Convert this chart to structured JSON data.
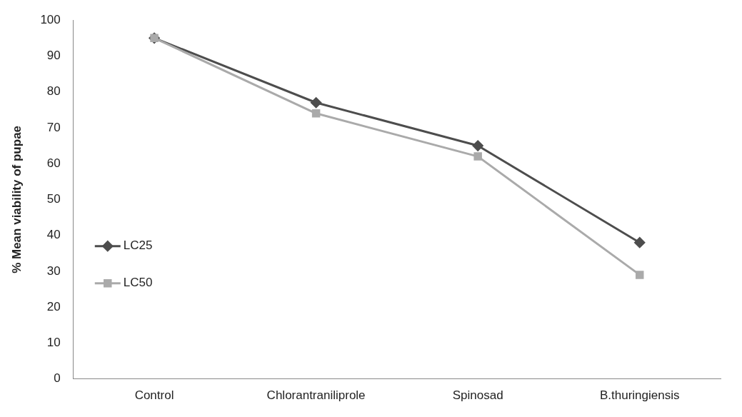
{
  "chart_data": {
    "type": "line",
    "ylabel": "% Mean viability of pupae",
    "categories": [
      "Control",
      "Chlorantraniliprole",
      "Spinosad",
      "B.thuringiensis"
    ],
    "series": [
      {
        "name": "LC25",
        "color": "#4d4d4d",
        "marker": "diamond",
        "values": [
          95,
          77,
          65,
          38
        ]
      },
      {
        "name": "LC50",
        "color": "#aaaaaa",
        "marker": "square",
        "values": [
          95,
          74,
          62,
          29
        ]
      }
    ],
    "ylim": [
      0,
      100
    ],
    "yticks": [
      0,
      10,
      20,
      30,
      40,
      50,
      60,
      70,
      80,
      90,
      100
    ],
    "grid": false,
    "legend": "left",
    "line_style": "solid"
  }
}
